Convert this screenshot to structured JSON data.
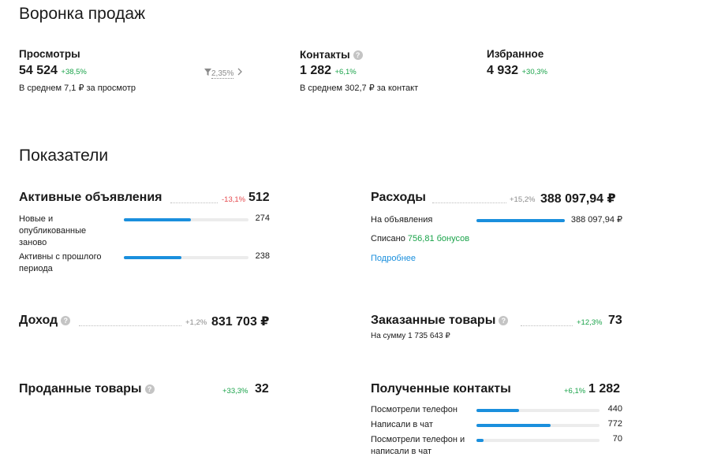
{
  "funnel": {
    "title": "Воронка продаж",
    "views": {
      "label": "Просмотры",
      "value": "54 524",
      "delta": "+38,5%",
      "sub": "В среднем 7,1 ₽ за просмотр"
    },
    "conversion": {
      "value": "2,35%"
    },
    "contacts": {
      "label": "Контакты",
      "value": "1 282",
      "delta": "+6,1%",
      "sub": "В среднем 302,7 ₽ за контакт"
    },
    "favorites": {
      "label": "Избранное",
      "value": "4 932",
      "delta": "+30,3%"
    }
  },
  "indicators": {
    "title": "Показатели",
    "active_ads": {
      "label": "Активные объявления",
      "delta": "-13,1%",
      "value": "512",
      "rows": [
        {
          "label": "Новые и опубликованные заново",
          "value": "274",
          "fraction": 0.535
        },
        {
          "label": "Активны с прошлого периода",
          "value": "238",
          "fraction": 0.465
        }
      ]
    },
    "expenses": {
      "label": "Расходы",
      "delta": "+15,2%",
      "value": "388 097,94 ₽",
      "rows": [
        {
          "label": "На объявления",
          "value": "388 097,94 ₽",
          "fraction": 1.0
        }
      ],
      "written_off_label": "Списано",
      "written_off_value": "756,81 бонусов",
      "more_link": "Подробнее"
    },
    "income": {
      "label": "Доход",
      "delta": "+1,2%",
      "value": "831 703 ₽"
    },
    "ordered": {
      "label": "Заказанные товары",
      "delta": "+12,3%",
      "value": "73",
      "sub": "На сумму 1 735 643 ₽"
    },
    "sold": {
      "label": "Проданные товары",
      "delta": "+33,3%",
      "value": "32"
    },
    "received_contacts": {
      "label": "Полученные контакты",
      "delta": "+6,1%",
      "value": "1 282",
      "rows": [
        {
          "label": "Посмотрели телефон",
          "value": "440",
          "fraction": 0.343
        },
        {
          "label": "Написали в чат",
          "value": "772",
          "fraction": 0.602
        },
        {
          "label": "Посмотрели телефон и написали в чат",
          "value": "70",
          "fraction": 0.055
        }
      ]
    }
  },
  "icons": {
    "question": "question-icon",
    "filter": "funnel-filter-icon",
    "chevron": "chevron-right-icon"
  },
  "colors": {
    "accent": "#1a8fdd",
    "positive": "#1aa34a",
    "negative": "#e5484d"
  }
}
